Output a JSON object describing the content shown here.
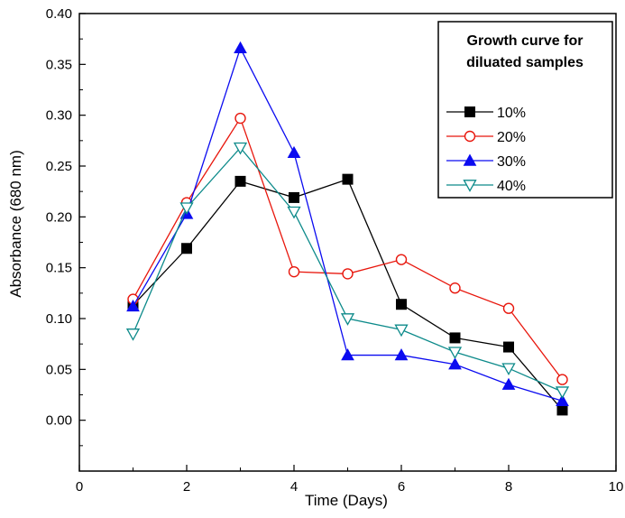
{
  "chart_data": {
    "type": "line",
    "title": "",
    "xlabel": "Time (Days)",
    "ylabel": "Absorbance (680 nm)",
    "xlim": [
      0,
      10
    ],
    "ylim": [
      -0.05,
      0.4
    ],
    "xticks": [
      0,
      2,
      4,
      6,
      8,
      10
    ],
    "yticks": [
      0.0,
      0.05,
      0.1,
      0.15,
      0.2,
      0.25,
      0.3,
      0.35,
      0.4
    ],
    "xtick_labels": [
      "0",
      "2",
      "4",
      "6",
      "8",
      "10"
    ],
    "ytick_labels": [
      "0.00",
      "0.05",
      "0.10",
      "0.15",
      "0.20",
      "0.25",
      "0.30",
      "0.35",
      "0.40"
    ],
    "grid": false,
    "legend": {
      "title_lines": [
        "Growth curve for",
        "diluated samples"
      ],
      "placement": "top-right"
    },
    "x": [
      1,
      2,
      3,
      4,
      5,
      6,
      7,
      8,
      9
    ],
    "series": [
      {
        "name": "10%",
        "color": "#000000",
        "marker": "square-filled",
        "values": [
          0.113,
          0.169,
          0.235,
          0.219,
          0.237,
          0.114,
          0.081,
          0.072,
          0.01
        ]
      },
      {
        "name": "20%",
        "color": "#e8160c",
        "marker": "circle-open",
        "values": [
          0.119,
          0.214,
          0.297,
          0.146,
          0.144,
          0.158,
          0.13,
          0.11,
          0.04
        ]
      },
      {
        "name": "30%",
        "color": "#0b0bf0",
        "marker": "triangle-up-filled",
        "values": [
          0.112,
          0.203,
          0.366,
          0.263,
          0.064,
          0.064,
          0.055,
          0.035,
          0.019
        ]
      },
      {
        "name": "40%",
        "color": "#0c8a8a",
        "marker": "triangle-down-open",
        "values": [
          0.085,
          0.209,
          0.268,
          0.205,
          0.1,
          0.089,
          0.067,
          0.051,
          0.028
        ]
      }
    ]
  }
}
